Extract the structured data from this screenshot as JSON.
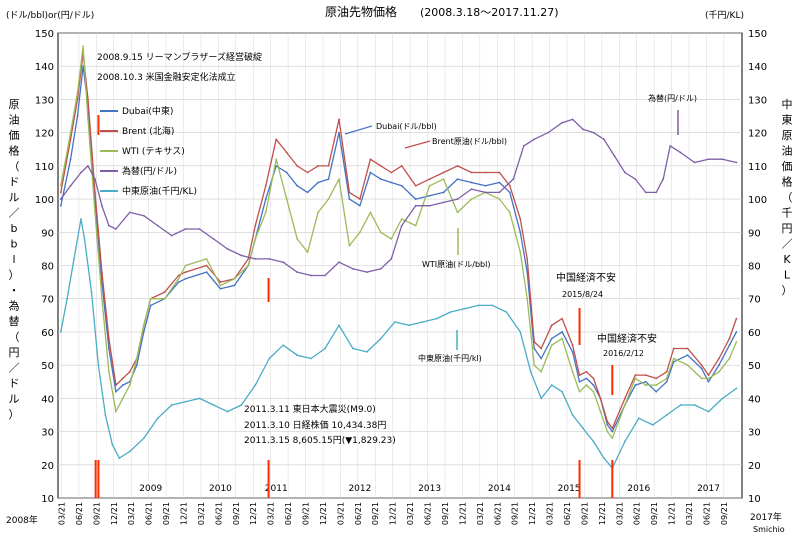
{
  "chart_data": {
    "type": "line",
    "title": "原油先物価格",
    "subtitle": "(2008.3.18～2017.11.27)",
    "y_left_unit": "(ドル/bbl)or(円/ドル)",
    "y_right_unit": "(千円/KL)",
    "y_left_label": [
      "原",
      "油",
      "価",
      "格",
      "（",
      "ド",
      "ル",
      "／",
      "b",
      "b",
      "l",
      "）",
      "・",
      "為",
      "替",
      "（",
      "円",
      "／",
      "ド",
      "ル",
      "）"
    ],
    "y_right_label": [
      "中",
      "東",
      "原",
      "油",
      "価",
      "格",
      "（",
      "千",
      "円",
      "／",
      "K",
      "L",
      "）"
    ],
    "ylim": [
      10,
      150
    ],
    "y_ticks": [
      10,
      20,
      30,
      40,
      50,
      60,
      70,
      80,
      90,
      100,
      110,
      120,
      130,
      140,
      150
    ],
    "x_start_label": "2008年",
    "x_end_label": "2017年",
    "credit": "Smichio",
    "x_tick_labels": [
      "03/21",
      "06/21",
      "09/21",
      "12/21",
      "03/21",
      "06/21",
      "09/21",
      "12/21",
      "03/21",
      "06/21",
      "09/21",
      "12/21",
      "03/21",
      "06/21",
      "09/21",
      "12/21",
      "03/21",
      "06/21",
      "09/21",
      "12/21",
      "03/21",
      "06/21",
      "09/21",
      "12/21",
      "03/21",
      "06/21",
      "09/21",
      "12/21",
      "03/21",
      "06/21",
      "09/21",
      "12/21",
      "03/21",
      "06/21",
      "09/21",
      "12/21",
      "03/21",
      "06/21",
      "09/21"
    ],
    "year_labels": [
      {
        "label": "2009",
        "x": 2009.5
      },
      {
        "label": "2010",
        "x": 2010.5
      },
      {
        "label": "2011",
        "x": 2011.3
      },
      {
        "label": "2012",
        "x": 2012.5
      },
      {
        "label": "2013",
        "x": 2013.5
      },
      {
        "label": "2014",
        "x": 2014.5
      },
      {
        "label": "2015",
        "x": 2015.5
      },
      {
        "label": "2016",
        "x": 2016.5
      },
      {
        "label": "2017",
        "x": 2017.5
      }
    ],
    "events": [
      {
        "x": 2008.71,
        "label": "2008.9.15 リーマンブラザーズ経営破綻"
      },
      {
        "x": 2008.75,
        "label": "2008.10.3 米国金融安定化法成立"
      },
      {
        "x": 2011.19,
        "label": "2011.3.11 東日本大震災(M9.0)"
      },
      {
        "x": 2015.65,
        "label": "中国経済不安"
      },
      {
        "x": 2016.12,
        "label": "中国経済不安"
      }
    ],
    "event_texts": [
      "2008.9.15 リーマンブラザーズ経営破綻",
      "2008.10.3 米国金融安定化法成立",
      "2011.3.11 東日本大震災(M9.0)",
      "2011.3.10 日経株価 10,434.38円",
      "2011.3.15 8,605.15円(▼1,829.23)",
      "中国経済不安",
      "2015/8/24",
      "中国経済不安",
      "2016/2/12"
    ],
    "series_callouts": [
      "Dubai(ドル/bbl)",
      "Brent原油(ドル/bbl)",
      "WTI原油(ドル/bbl)",
      "中東原油(千円/kl)",
      "為替(円/ドル)"
    ],
    "legend": [
      {
        "name": "Dubai(中東)",
        "color": "#4472c4"
      },
      {
        "name": "Brent (北海)",
        "color": "#c0504d"
      },
      {
        "name": "WTI (テキサス)",
        "color": "#9bbb59"
      },
      {
        "name": "為替(円/ドル)",
        "color": "#7f5fa8"
      },
      {
        "name": "中東原油(千円/KL)",
        "color": "#4bacc6"
      }
    ],
    "series": [
      {
        "name": "Dubai(中東)",
        "color": "#4472c4",
        "x": [
          2008.21,
          2008.35,
          2008.45,
          2008.53,
          2008.6,
          2008.7,
          2008.8,
          2008.9,
          2009.0,
          2009.1,
          2009.2,
          2009.3,
          2009.4,
          2009.5,
          2009.7,
          2009.9,
          2010.0,
          2010.3,
          2010.5,
          2010.7,
          2010.9,
          2011.0,
          2011.15,
          2011.3,
          2011.45,
          2011.6,
          2011.75,
          2011.9,
          2012.05,
          2012.2,
          2012.35,
          2012.5,
          2012.65,
          2012.8,
          2012.95,
          2013.1,
          2013.3,
          2013.5,
          2013.7,
          2013.9,
          2014.1,
          2014.3,
          2014.5,
          2014.65,
          2014.8,
          2014.9,
          2015.0,
          2015.1,
          2015.25,
          2015.4,
          2015.55,
          2015.65,
          2015.75,
          2015.85,
          2015.95,
          2016.05,
          2016.12,
          2016.3,
          2016.45,
          2016.6,
          2016.75,
          2016.9,
          2017.0,
          2017.2,
          2017.4,
          2017.5,
          2017.65,
          2017.8,
          2017.9
        ],
        "y": [
          98,
          112,
          125,
          140,
          128,
          100,
          75,
          55,
          42,
          44,
          45,
          50,
          60,
          68,
          70,
          75,
          76,
          78,
          73,
          74,
          80,
          88,
          100,
          110,
          108,
          104,
          102,
          105,
          106,
          120,
          100,
          98,
          108,
          106,
          105,
          104,
          100,
          101,
          102,
          106,
          105,
          104,
          105,
          102,
          90,
          78,
          55,
          52,
          58,
          60,
          54,
          45,
          46,
          44,
          40,
          32,
          30,
          38,
          44,
          45,
          42,
          45,
          51,
          53,
          49,
          45,
          50,
          56,
          60
        ]
      },
      {
        "name": "Brent (北海)",
        "color": "#c0504d",
        "x": [
          2008.21,
          2008.35,
          2008.45,
          2008.53,
          2008.6,
          2008.7,
          2008.8,
          2008.9,
          2009.0,
          2009.1,
          2009.2,
          2009.3,
          2009.4,
          2009.5,
          2009.7,
          2009.9,
          2010.0,
          2010.3,
          2010.5,
          2010.7,
          2010.9,
          2011.0,
          2011.15,
          2011.3,
          2011.45,
          2011.6,
          2011.75,
          2011.9,
          2012.05,
          2012.2,
          2012.35,
          2012.5,
          2012.65,
          2012.8,
          2012.95,
          2013.1,
          2013.3,
          2013.5,
          2013.7,
          2013.9,
          2014.1,
          2014.3,
          2014.5,
          2014.65,
          2014.8,
          2014.9,
          2015.0,
          2015.1,
          2015.25,
          2015.4,
          2015.55,
          2015.65,
          2015.75,
          2015.85,
          2015.95,
          2016.05,
          2016.12,
          2016.3,
          2016.45,
          2016.6,
          2016.75,
          2016.9,
          2017.0,
          2017.2,
          2017.4,
          2017.5,
          2017.65,
          2017.8,
          2017.9
        ],
        "y": [
          102,
          118,
          130,
          144,
          130,
          102,
          78,
          58,
          44,
          46,
          48,
          52,
          62,
          70,
          72,
          77,
          78,
          80,
          75,
          76,
          82,
          92,
          104,
          118,
          114,
          110,
          108,
          110,
          110,
          124,
          102,
          100,
          112,
          110,
          108,
          110,
          104,
          106,
          108,
          110,
          108,
          108,
          108,
          104,
          94,
          82,
          57,
          55,
          62,
          64,
          56,
          47,
          48,
          46,
          40,
          33,
          31,
          40,
          47,
          47,
          46,
          48,
          55,
          55,
          50,
          47,
          52,
          58,
          64
        ]
      },
      {
        "name": "WTI (テキサス)",
        "color": "#9bbb59",
        "x": [
          2008.21,
          2008.35,
          2008.45,
          2008.53,
          2008.6,
          2008.7,
          2008.8,
          2008.9,
          2009.0,
          2009.1,
          2009.2,
          2009.3,
          2009.4,
          2009.5,
          2009.7,
          2009.9,
          2010.0,
          2010.3,
          2010.5,
          2010.7,
          2010.9,
          2011.0,
          2011.15,
          2011.3,
          2011.45,
          2011.6,
          2011.75,
          2011.9,
          2012.05,
          2012.2,
          2012.35,
          2012.5,
          2012.65,
          2012.8,
          2012.95,
          2013.1,
          2013.3,
          2013.5,
          2013.7,
          2013.9,
          2014.1,
          2014.3,
          2014.5,
          2014.65,
          2014.8,
          2014.9,
          2015.0,
          2015.1,
          2015.25,
          2015.4,
          2015.55,
          2015.65,
          2015.75,
          2015.85,
          2015.95,
          2016.05,
          2016.12,
          2016.3,
          2016.45,
          2016.6,
          2016.75,
          2016.9,
          2017.0,
          2017.2,
          2017.4,
          2017.5,
          2017.65,
          2017.8,
          2017.9
        ],
        "y": [
          104,
          120,
          132,
          146,
          124,
          96,
          70,
          48,
          36,
          40,
          44,
          52,
          62,
          70,
          70,
          76,
          80,
          82,
          74,
          76,
          80,
          88,
          96,
          112,
          100,
          88,
          84,
          96,
          100,
          106,
          86,
          90,
          96,
          90,
          88,
          94,
          92,
          104,
          106,
          96,
          100,
          102,
          100,
          96,
          84,
          70,
          50,
          48,
          56,
          58,
          48,
          42,
          44,
          42,
          36,
          30,
          28,
          38,
          46,
          44,
          44,
          46,
          52,
          50,
          46,
          46,
          48,
          52,
          57
        ]
      },
      {
        "name": "為替(円/ドル)",
        "color": "#7f5fa8",
        "x": [
          2008.21,
          2008.35,
          2008.5,
          2008.6,
          2008.7,
          2008.8,
          2008.9,
          2009.0,
          2009.2,
          2009.4,
          2009.6,
          2009.8,
          2010.0,
          2010.2,
          2010.4,
          2010.6,
          2010.8,
          2011.0,
          2011.2,
          2011.4,
          2011.6,
          2011.8,
          2012.0,
          2012.2,
          2012.4,
          2012.6,
          2012.8,
          2012.95,
          2013.1,
          2013.3,
          2013.5,
          2013.7,
          2013.9,
          2014.1,
          2014.3,
          2014.5,
          2014.7,
          2014.85,
          2015.0,
          2015.2,
          2015.4,
          2015.55,
          2015.7,
          2015.85,
          2016.0,
          2016.15,
          2016.3,
          2016.45,
          2016.6,
          2016.75,
          2016.85,
          2016.95,
          2017.1,
          2017.3,
          2017.5,
          2017.7,
          2017.9
        ],
        "y": [
          100,
          104,
          108,
          110,
          106,
          98,
          92,
          91,
          96,
          95,
          92,
          89,
          91,
          91,
          88,
          85,
          83,
          82,
          82,
          81,
          78,
          77,
          77,
          81,
          79,
          78,
          79,
          82,
          92,
          98,
          98,
          99,
          100,
          103,
          102,
          102,
          106,
          116,
          118,
          120,
          123,
          124,
          121,
          120,
          118,
          113,
          108,
          106,
          102,
          102,
          106,
          116,
          114,
          111,
          112,
          112,
          111
        ]
      },
      {
        "name": "中東原油(千円/KL)",
        "color": "#4bacc6",
        "x": [
          2008.21,
          2008.3,
          2008.4,
          2008.5,
          2008.55,
          2008.65,
          2008.75,
          2008.85,
          2008.95,
          2009.05,
          2009.2,
          2009.4,
          2009.6,
          2009.8,
          2010.0,
          2010.2,
          2010.4,
          2010.6,
          2010.8,
          2011.0,
          2011.2,
          2011.4,
          2011.6,
          2011.8,
          2012.0,
          2012.2,
          2012.4,
          2012.6,
          2012.8,
          2013.0,
          2013.2,
          2013.4,
          2013.6,
          2013.8,
          2014.0,
          2014.2,
          2014.4,
          2014.6,
          2014.8,
          2014.95,
          2015.1,
          2015.25,
          2015.4,
          2015.55,
          2015.7,
          2015.85,
          2016.0,
          2016.12,
          2016.3,
          2016.5,
          2016.7,
          2016.9,
          2017.1,
          2017.3,
          2017.5,
          2017.7,
          2017.9
        ],
        "y": [
          60,
          70,
          82,
          94,
          88,
          72,
          50,
          35,
          26,
          22,
          24,
          28,
          34,
          38,
          39,
          40,
          38,
          36,
          38,
          44,
          52,
          56,
          53,
          52,
          55,
          62,
          55,
          54,
          58,
          63,
          62,
          63,
          64,
          66,
          67,
          68,
          68,
          66,
          60,
          48,
          40,
          44,
          42,
          35,
          31,
          27,
          22,
          19,
          27,
          34,
          32,
          35,
          38,
          38,
          36,
          40,
          43
        ]
      }
    ]
  }
}
